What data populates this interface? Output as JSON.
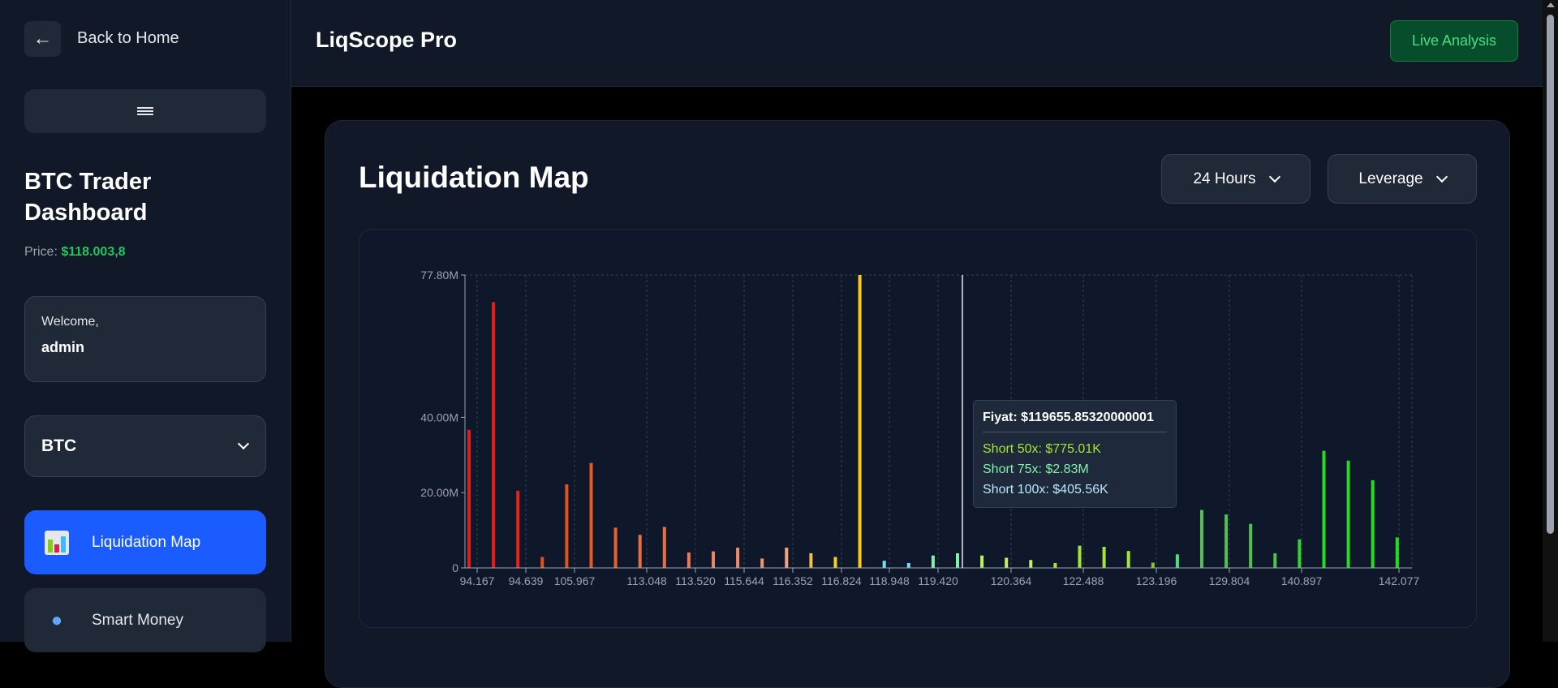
{
  "sidebar": {
    "back_label": "Back to Home",
    "dashboard_title": "BTC Trader Dashboard",
    "price_label": "Price:",
    "price_value": "$118.003,8",
    "welcome_label": "Welcome,",
    "username": "admin",
    "coin_selected": "BTC",
    "nav": [
      {
        "label": "Liquidation Map",
        "icon": "bar-chart-icon",
        "active": true
      },
      {
        "label": "Smart Money",
        "icon": "whale-icon",
        "active": false
      }
    ]
  },
  "header": {
    "title": "LiqScope Pro",
    "live_button": "Live Analysis"
  },
  "main": {
    "card_title": "Liquidation Map",
    "timeframe_selected": "24 Hours",
    "leverage_selected": "Leverage"
  },
  "tooltip": {
    "title": "Fiyat: $119655.85320000001",
    "lines": [
      {
        "text": "Short 50x: $775.01K",
        "color": "#a3e635"
      },
      {
        "text": "Short 75x: $2.83M",
        "color": "#86efac"
      },
      {
        "text": "Short 100x: $405.56K",
        "color": "#bae6fd"
      }
    ]
  },
  "chart_data": {
    "type": "bar",
    "ylim": [
      0,
      77.8
    ],
    "yunit": "M",
    "yticks": [
      "0",
      "20.00M",
      "40.00M",
      "77.80M"
    ],
    "ytick_values": [
      0,
      20,
      40,
      77.8
    ],
    "xticks": [
      "94.167",
      "94.639",
      "105.967",
      "113.048",
      "113.520",
      "115.644",
      "116.352",
      "116.824",
      "118.948",
      "119.420",
      "120.364",
      "122.488",
      "123.196",
      "129.804",
      "140.897",
      "142.077"
    ],
    "grid": "vertical dashed at x ticks",
    "values": [
      36.7,
      70.6,
      20.5,
      2.9,
      22.2,
      27.9,
      10.7,
      8.8,
      10.9,
      4.1,
      4.4,
      5.4,
      2.5,
      5.4,
      3.9,
      2.9,
      77.8,
      1.9,
      1.3,
      3.3,
      3.9,
      3.3,
      2.7,
      2.1,
      1.3,
      5.9,
      5.6,
      4.5,
      1.4,
      3.6,
      15.4,
      14.2,
      11.7,
      3.9,
      7.6,
      31.1,
      28.5,
      23.3,
      8.1
    ],
    "colors": [
      "#dc1f1f",
      "#e0201f",
      "#e1261c",
      "#e4511f",
      "#e4531f",
      "#e65a22",
      "#e8622a",
      "#ea6e40",
      "#ea6e48",
      "#ec7a55",
      "#ee845c",
      "#f08a63",
      "#f29468",
      "#f4a47a",
      "#f2c04a",
      "#f2d02a",
      "#facc15",
      "#67e8f9",
      "#7dd3fc",
      "#86efac",
      "#86efac",
      "#bef264",
      "#bef264",
      "#bef264",
      "#a3e635",
      "#a3e635",
      "#a3e635",
      "#a3e635",
      "#84cc16",
      "#4ade80",
      "#4fc24f",
      "#4fc24f",
      "#4fc24f",
      "#4fc24f",
      "#2ed62e",
      "#22dd22",
      "#22dd22",
      "#22dd22",
      "#22dd22"
    ],
    "current_price_marker_color": "#facc15",
    "crosshair_color": "#e5e7eb"
  }
}
